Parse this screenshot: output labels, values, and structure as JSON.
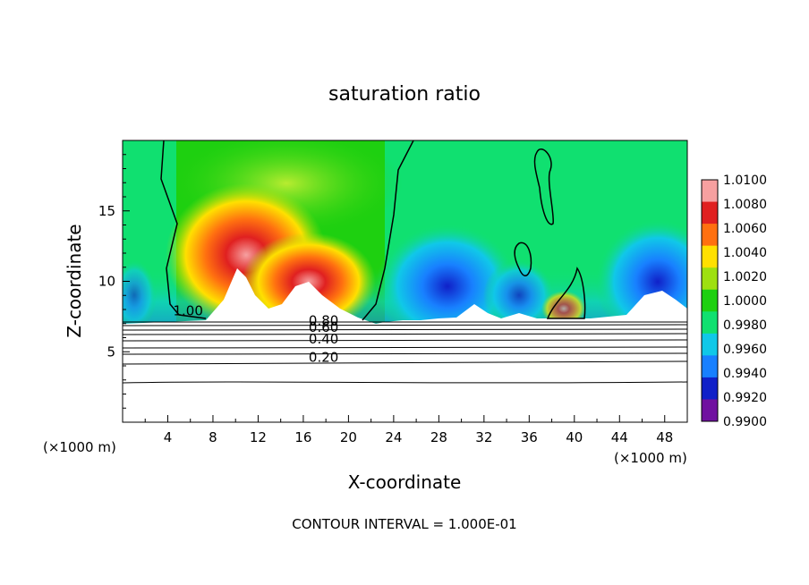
{
  "chart_data": {
    "type": "heatmap",
    "title": "saturation ratio",
    "xlabel": "X-coordinate",
    "ylabel": "Z-coordinate",
    "x_unit_left": "(×1000 m)",
    "x_unit_right": "(×1000 m)",
    "footer": "CONTOUR INTERVAL = 1.000E-01",
    "xlim": [
      0,
      50
    ],
    "ylim": [
      0,
      20
    ],
    "x_ticks": [
      "4",
      "8",
      "12",
      "16",
      "20",
      "24",
      "28",
      "32",
      "36",
      "40",
      "44",
      "48"
    ],
    "y_ticks": [
      "5",
      "10",
      "15"
    ],
    "colorbar_levels": [
      "1.0100",
      "1.0080",
      "1.0060",
      "1.0040",
      "1.0020",
      "1.0000",
      "0.9980",
      "0.9960",
      "0.9940",
      "0.9920",
      "0.9900"
    ],
    "colorbar_colors": [
      "#f6a0a0",
      "#e02020",
      "#ff7010",
      "#ffe000",
      "#9ee010",
      "#1ed010",
      "#10e070",
      "#10c8e8",
      "#1880ff",
      "#1020c8",
      "#7010a0"
    ],
    "contour_labels": [
      {
        "text": "1.00",
        "x": 5.8,
        "y": 7.6
      },
      {
        "text": "0.80",
        "x": 17.8,
        "y": 6.9
      },
      {
        "text": "0.60",
        "x": 17.8,
        "y": 6.4
      },
      {
        "text": "0.40",
        "x": 17.8,
        "y": 5.6
      },
      {
        "text": "0.20",
        "x": 17.8,
        "y": 4.3
      }
    ],
    "grid": false,
    "legend": "right colorbar"
  }
}
